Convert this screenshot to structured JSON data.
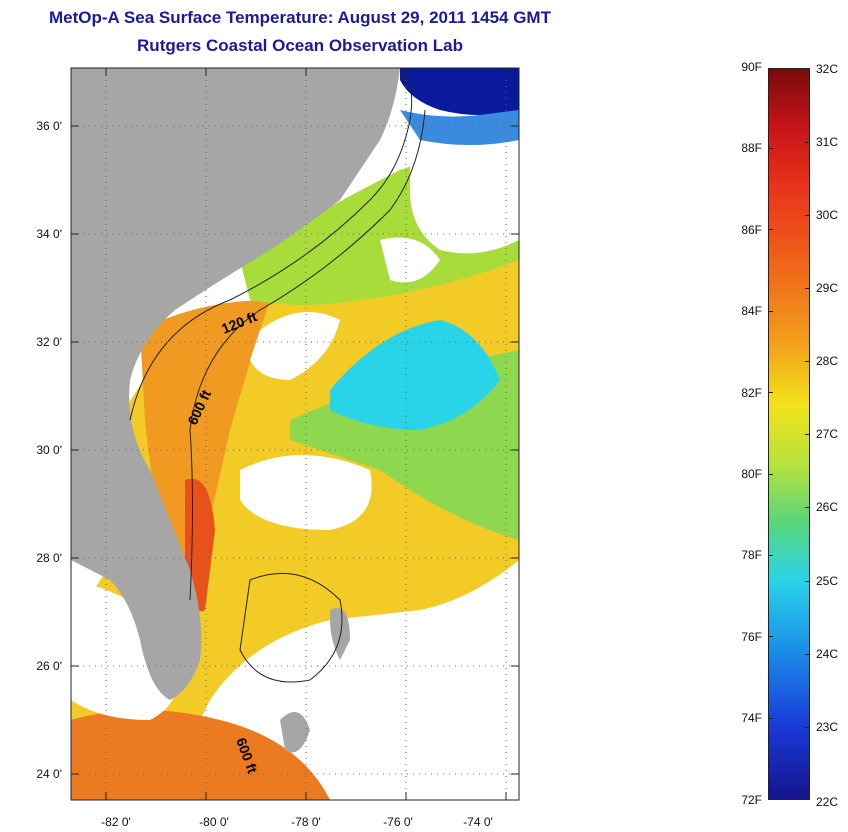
{
  "title": {
    "line1": "MetOp-A Sea Surface Temperature:  August 29, 2011 1454 GMT",
    "line2": "Rutgers Coastal Ocean Observation Lab"
  },
  "map": {
    "lon_ticks": [
      "-82 0'",
      "-80 0'",
      "-78 0'",
      "-76 0'",
      "-74 0'"
    ],
    "lat_ticks": [
      "36 0'",
      "34 0'",
      "32 0'",
      "30 0'",
      "28 0'",
      "26 0'",
      "24 0'"
    ],
    "contour_labels": [
      "120 ft",
      "600 ft",
      "600 ft"
    ],
    "colors": {
      "land": "#a6a6a6",
      "cloud": "#ffffff",
      "warm": "#f08a1a",
      "hot": "#e8421a",
      "mid": "#f2c81a",
      "cool": "#7ad65a",
      "cold": "#2ad4e8",
      "coldest": "#0a1a9c"
    }
  },
  "colorbar": {
    "fahrenheit": [
      "90F",
      "88F",
      "86F",
      "84F",
      "82F",
      "80F",
      "78F",
      "76F",
      "74F",
      "72F"
    ],
    "celsius": [
      "32C",
      "31C",
      "30C",
      "29C",
      "28C",
      "27C",
      "26C",
      "25C",
      "24C",
      "23C",
      "22C"
    ],
    "range_c": [
      22,
      32
    ],
    "range_f": [
      72,
      90
    ]
  }
}
